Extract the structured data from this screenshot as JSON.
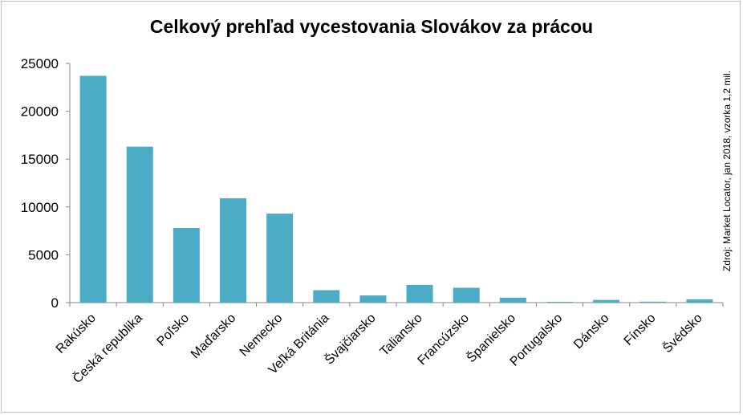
{
  "chart_data": {
    "type": "bar",
    "title": "Celkový prehľad vycestovania Slovákov za prácou",
    "source_note": "Zdroj: Market Locator, jan 2018, vzorka 1,2 mil.",
    "categories": [
      "Rakúsko",
      "Česká republika",
      "Poľsko",
      "Maďarsko",
      "Nemecko",
      "Veľká Británia",
      "Švajčiarsko",
      "Taliansko",
      "Francúzsko",
      "Španielsko",
      "Portugalsko",
      "Dánsko",
      "Fínsko",
      "Švédsko"
    ],
    "values": [
      23700,
      16300,
      7800,
      10900,
      9300,
      1300,
      750,
      1850,
      1550,
      520,
      80,
      280,
      100,
      350
    ],
    "yticks": [
      "0",
      "5000",
      "10000",
      "15000",
      "20000",
      "25000"
    ],
    "ylim": [
      0,
      25000
    ],
    "bar_color": "#4bacc6",
    "grid": false,
    "xlabel": "",
    "ylabel": ""
  }
}
